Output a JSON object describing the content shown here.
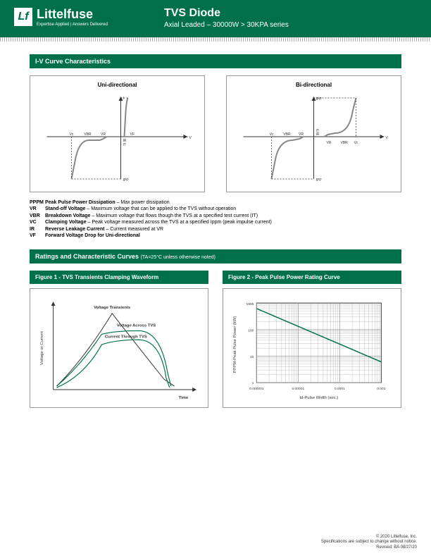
{
  "header": {
    "brand": "Littelfuse",
    "tagline": "Expertise Applied | Answers Delivered",
    "title": "TVS Diode",
    "subtitle": "Axial Leaded – 30000W > 30KPA series"
  },
  "sections": {
    "iv_title": "I-V Curve Characteristics",
    "ratings_title": "Ratings and Characteristic Curves",
    "ratings_note": "(TA=25°C unless otherwise noted)"
  },
  "iv": {
    "uni_title": "Uni-directional",
    "bi_title": "Bi-directional",
    "labels": {
      "V": "V",
      "I": "I",
      "Vc": "Vc",
      "Vbr": "VBR",
      "Vr": "VR",
      "Vf": "VF",
      "Ir": "IR",
      "It": "IT",
      "Ipp": "IPP"
    },
    "colors": {
      "axis": "#333333",
      "curve": "#888888",
      "dash": "#333333"
    }
  },
  "definitions": [
    {
      "sym": "PPPM",
      "term": "Peak Pulse Power Dissipation",
      "desc": " – Max power dissipation"
    },
    {
      "sym": "VR",
      "term": "Stand-off Voltage",
      "desc": " – Maximum voltage that can be applied to the TVS without operation"
    },
    {
      "sym": "VBR",
      "term": "Breakdown Voltage",
      "desc": " – Maximum voltage that flows though the TVS at a specified test current (IT)"
    },
    {
      "sym": "VC",
      "term": "Clamping Voltage",
      "desc": " – Peak voltage measured across the TVS at a specified Ippm (peak impulse current)"
    },
    {
      "sym": "IR",
      "term": "Reverse Leakage Current",
      "desc": " – Current measured at VR"
    },
    {
      "sym": "VF",
      "term": "Forward Voltage Drop for Uni-directional",
      "desc": ""
    }
  ],
  "fig1": {
    "bar": "Figure 1 - TVS Transients Clamping Waveform",
    "ylabel": "Voltage or Current",
    "xlabel": "Time",
    "labels": {
      "vt": "Voltage Transients",
      "va": "Voltage Across TVS",
      "ct": "Current Through TVS"
    },
    "colors": {
      "vt": "#333333",
      "va": "#00704a",
      "ct": "#00704a",
      "axis": "#333333"
    }
  },
  "fig2": {
    "bar": "Figure 2 - Peak Pulse Power Rating Curve",
    "ylabel": "PPPM-Peak Pulse Power (kW)",
    "xlabel": "td-Pulse Width (sec.)",
    "yticks": [
      "1",
      "10",
      "100",
      "1000"
    ],
    "xticks": [
      "0.000001",
      "0.00001",
      "0.0001",
      "0.001"
    ],
    "colors": {
      "grid": "#999999",
      "line": "#00704a",
      "axis": "#333333"
    }
  },
  "footer": {
    "l1": "© 2020 Littelfuse, Inc.",
    "l2": "Specifications are subject to change without notice.",
    "l3": "Revised: BA 08/27/20"
  }
}
